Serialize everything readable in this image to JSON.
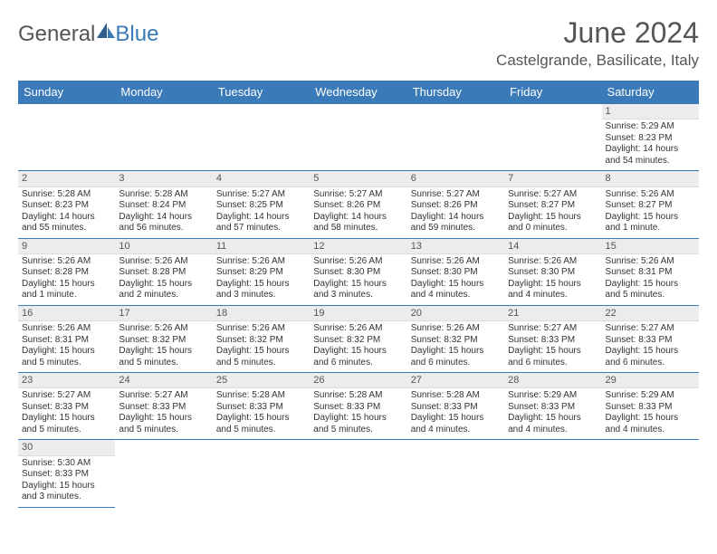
{
  "logo": {
    "text1": "General",
    "text2": "Blue"
  },
  "title": "June 2024",
  "location": "Castelgrande, Basilicate, Italy",
  "header_bg": "#3a7ab8",
  "day_headers": [
    "Sunday",
    "Monday",
    "Tuesday",
    "Wednesday",
    "Thursday",
    "Friday",
    "Saturday"
  ],
  "weeks": [
    [
      null,
      null,
      null,
      null,
      null,
      null,
      {
        "n": "1",
        "sunrise": "Sunrise: 5:29 AM",
        "sunset": "Sunset: 8:23 PM",
        "daylight": "Daylight: 14 hours and 54 minutes."
      }
    ],
    [
      {
        "n": "2",
        "sunrise": "Sunrise: 5:28 AM",
        "sunset": "Sunset: 8:23 PM",
        "daylight": "Daylight: 14 hours and 55 minutes."
      },
      {
        "n": "3",
        "sunrise": "Sunrise: 5:28 AM",
        "sunset": "Sunset: 8:24 PM",
        "daylight": "Daylight: 14 hours and 56 minutes."
      },
      {
        "n": "4",
        "sunrise": "Sunrise: 5:27 AM",
        "sunset": "Sunset: 8:25 PM",
        "daylight": "Daylight: 14 hours and 57 minutes."
      },
      {
        "n": "5",
        "sunrise": "Sunrise: 5:27 AM",
        "sunset": "Sunset: 8:26 PM",
        "daylight": "Daylight: 14 hours and 58 minutes."
      },
      {
        "n": "6",
        "sunrise": "Sunrise: 5:27 AM",
        "sunset": "Sunset: 8:26 PM",
        "daylight": "Daylight: 14 hours and 59 minutes."
      },
      {
        "n": "7",
        "sunrise": "Sunrise: 5:27 AM",
        "sunset": "Sunset: 8:27 PM",
        "daylight": "Daylight: 15 hours and 0 minutes."
      },
      {
        "n": "8",
        "sunrise": "Sunrise: 5:26 AM",
        "sunset": "Sunset: 8:27 PM",
        "daylight": "Daylight: 15 hours and 1 minute."
      }
    ],
    [
      {
        "n": "9",
        "sunrise": "Sunrise: 5:26 AM",
        "sunset": "Sunset: 8:28 PM",
        "daylight": "Daylight: 15 hours and 1 minute."
      },
      {
        "n": "10",
        "sunrise": "Sunrise: 5:26 AM",
        "sunset": "Sunset: 8:28 PM",
        "daylight": "Daylight: 15 hours and 2 minutes."
      },
      {
        "n": "11",
        "sunrise": "Sunrise: 5:26 AM",
        "sunset": "Sunset: 8:29 PM",
        "daylight": "Daylight: 15 hours and 3 minutes."
      },
      {
        "n": "12",
        "sunrise": "Sunrise: 5:26 AM",
        "sunset": "Sunset: 8:30 PM",
        "daylight": "Daylight: 15 hours and 3 minutes."
      },
      {
        "n": "13",
        "sunrise": "Sunrise: 5:26 AM",
        "sunset": "Sunset: 8:30 PM",
        "daylight": "Daylight: 15 hours and 4 minutes."
      },
      {
        "n": "14",
        "sunrise": "Sunrise: 5:26 AM",
        "sunset": "Sunset: 8:30 PM",
        "daylight": "Daylight: 15 hours and 4 minutes."
      },
      {
        "n": "15",
        "sunrise": "Sunrise: 5:26 AM",
        "sunset": "Sunset: 8:31 PM",
        "daylight": "Daylight: 15 hours and 5 minutes."
      }
    ],
    [
      {
        "n": "16",
        "sunrise": "Sunrise: 5:26 AM",
        "sunset": "Sunset: 8:31 PM",
        "daylight": "Daylight: 15 hours and 5 minutes."
      },
      {
        "n": "17",
        "sunrise": "Sunrise: 5:26 AM",
        "sunset": "Sunset: 8:32 PM",
        "daylight": "Daylight: 15 hours and 5 minutes."
      },
      {
        "n": "18",
        "sunrise": "Sunrise: 5:26 AM",
        "sunset": "Sunset: 8:32 PM",
        "daylight": "Daylight: 15 hours and 5 minutes."
      },
      {
        "n": "19",
        "sunrise": "Sunrise: 5:26 AM",
        "sunset": "Sunset: 8:32 PM",
        "daylight": "Daylight: 15 hours and 6 minutes."
      },
      {
        "n": "20",
        "sunrise": "Sunrise: 5:26 AM",
        "sunset": "Sunset: 8:32 PM",
        "daylight": "Daylight: 15 hours and 6 minutes."
      },
      {
        "n": "21",
        "sunrise": "Sunrise: 5:27 AM",
        "sunset": "Sunset: 8:33 PM",
        "daylight": "Daylight: 15 hours and 6 minutes."
      },
      {
        "n": "22",
        "sunrise": "Sunrise: 5:27 AM",
        "sunset": "Sunset: 8:33 PM",
        "daylight": "Daylight: 15 hours and 6 minutes."
      }
    ],
    [
      {
        "n": "23",
        "sunrise": "Sunrise: 5:27 AM",
        "sunset": "Sunset: 8:33 PM",
        "daylight": "Daylight: 15 hours and 5 minutes."
      },
      {
        "n": "24",
        "sunrise": "Sunrise: 5:27 AM",
        "sunset": "Sunset: 8:33 PM",
        "daylight": "Daylight: 15 hours and 5 minutes."
      },
      {
        "n": "25",
        "sunrise": "Sunrise: 5:28 AM",
        "sunset": "Sunset: 8:33 PM",
        "daylight": "Daylight: 15 hours and 5 minutes."
      },
      {
        "n": "26",
        "sunrise": "Sunrise: 5:28 AM",
        "sunset": "Sunset: 8:33 PM",
        "daylight": "Daylight: 15 hours and 5 minutes."
      },
      {
        "n": "27",
        "sunrise": "Sunrise: 5:28 AM",
        "sunset": "Sunset: 8:33 PM",
        "daylight": "Daylight: 15 hours and 4 minutes."
      },
      {
        "n": "28",
        "sunrise": "Sunrise: 5:29 AM",
        "sunset": "Sunset: 8:33 PM",
        "daylight": "Daylight: 15 hours and 4 minutes."
      },
      {
        "n": "29",
        "sunrise": "Sunrise: 5:29 AM",
        "sunset": "Sunset: 8:33 PM",
        "daylight": "Daylight: 15 hours and 4 minutes."
      }
    ],
    [
      {
        "n": "30",
        "sunrise": "Sunrise: 5:30 AM",
        "sunset": "Sunset: 8:33 PM",
        "daylight": "Daylight: 15 hours and 3 minutes."
      },
      null,
      null,
      null,
      null,
      null,
      null
    ]
  ]
}
